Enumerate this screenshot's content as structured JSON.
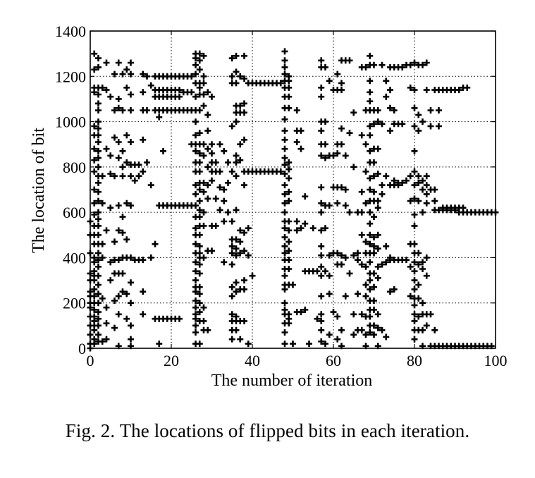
{
  "figure": {
    "caption": "Fig. 2.  The locations of flipped bits in each iteration."
  },
  "chart_data": {
    "type": "scatter",
    "marker": "+",
    "marker_color": "#000000",
    "title": "",
    "xlabel": "The number of iteration",
    "ylabel": "The location of bit",
    "xlim": [
      0,
      100
    ],
    "ylim": [
      0,
      1400
    ],
    "xticks": [
      0,
      20,
      40,
      60,
      80,
      100
    ],
    "yticks": [
      0,
      200,
      400,
      600,
      800,
      1000,
      1200,
      1400
    ],
    "grid": "dotted",
    "clusters": [
      {
        "x": 0,
        "y": [
          560,
          500,
          420,
          330,
          300,
          250,
          230,
          200,
          180,
          140,
          100,
          60,
          20,
          0
        ]
      },
      {
        "x": 1,
        "y": [
          1300,
          1230,
          1150,
          1130,
          980,
          940,
          880,
          830,
          780,
          700,
          640,
          590,
          540,
          500,
          460,
          400,
          380,
          340,
          320,
          300,
          260,
          230,
          200,
          170,
          140,
          120,
          100,
          80,
          40,
          20
        ]
      },
      {
        "x": 2,
        "y": [
          1280,
          1240,
          1150,
          1120,
          1080,
          1050,
          1000,
          970,
          940,
          910,
          870,
          840,
          800,
          760,
          730,
          690,
          650,
          600,
          570,
          540,
          500,
          460,
          420,
          390,
          360,
          320,
          280,
          240,
          200,
          160,
          130,
          100,
          60,
          30
        ]
      },
      {
        "x": 3,
        "y": [
          1150,
          760,
          640,
          460,
          400,
          220,
          30
        ]
      },
      {
        "x": 4,
        "y": [
          1260,
          1140,
          880,
          520,
          180,
          110,
          40
        ]
      },
      {
        "x": 5,
        "y": [
          1110,
          850,
          770,
          620,
          380,
          300
        ]
      },
      {
        "x": 6,
        "y": [
          1210,
          1050,
          930,
          760,
          470,
          390,
          330,
          210,
          90
        ]
      },
      {
        "x": 7,
        "y": [
          1260,
          1100,
          1060,
          910,
          840,
          630,
          520,
          390,
          330,
          230,
          150,
          10
        ]
      },
      {
        "x": 8,
        "y": [
          1210,
          1050,
          870,
          800,
          760,
          580,
          510,
          400,
          330,
          250
        ]
      },
      {
        "x": 9,
        "y": [
          1230,
          1150,
          940,
          820,
          640,
          480,
          400,
          240,
          130
        ]
      },
      {
        "x": 10,
        "y": [
          1260,
          1210,
          1120,
          1050,
          910,
          810,
          760,
          630,
          400,
          290,
          200,
          100,
          40,
          10
        ]
      },
      {
        "x": 11,
        "y": [
          810,
          740,
          390
        ]
      },
      {
        "x": 12,
        "y": [
          810,
          760,
          390
        ]
      },
      {
        "x": 13,
        "y": [
          1210,
          1130,
          1050,
          920,
          780,
          390,
          250,
          150
        ]
      },
      {
        "x": 14,
        "y": [
          1200,
          1050,
          820
        ]
      },
      {
        "x": 15,
        "y": [
          1160,
          720,
          400
        ]
      },
      {
        "x": 16,
        "y": [
          1200,
          1140,
          1110,
          1050,
          460,
          130
        ]
      },
      {
        "x": 17,
        "y": [
          1200,
          1140,
          1110,
          1050,
          1020,
          630,
          130,
          20
        ]
      },
      {
        "x": 18,
        "y": [
          1200,
          1140,
          1110,
          1050,
          870,
          630,
          130
        ]
      },
      {
        "x": 19,
        "y": [
          1200,
          1140,
          1110,
          1050,
          630,
          130
        ]
      },
      {
        "x": 20,
        "y": [
          1200,
          1140,
          1110,
          1050,
          630,
          130
        ]
      },
      {
        "x": 21,
        "y": [
          1200,
          1140,
          1110,
          1050,
          630,
          130
        ]
      },
      {
        "x": 22,
        "y": [
          1200,
          1140,
          1110,
          1050,
          630,
          130
        ]
      },
      {
        "x": 23,
        "y": [
          1200,
          1130,
          1050,
          630
        ]
      },
      {
        "x": 24,
        "y": [
          1200,
          1130,
          1050,
          630
        ]
      },
      {
        "x": 25,
        "y": [
          1200,
          1130,
          1050,
          900,
          630
        ]
      },
      {
        "x": 26,
        "y": [
          1300,
          1280,
          1250,
          1210,
          1170,
          1110,
          1050,
          1000,
          940,
          900,
          870,
          820,
          780,
          720,
          680,
          630,
          580,
          530,
          500,
          460,
          420,
          380,
          340,
          300,
          270,
          250,
          210,
          180,
          150,
          130,
          100,
          70,
          20
        ]
      },
      {
        "x": 27,
        "y": [
          1300,
          1270,
          1230,
          1170,
          1150,
          1120,
          1050,
          950,
          900,
          860,
          820,
          780,
          730,
          700,
          650,
          610,
          580,
          540,
          500,
          450,
          420,
          400,
          370,
          330,
          270,
          240,
          200,
          160,
          120,
          20
        ]
      },
      {
        "x": 28,
        "y": [
          1290,
          1200,
          1170,
          1120,
          1070,
          900,
          850,
          730,
          690,
          600,
          540,
          400,
          180,
          120,
          80
        ]
      },
      {
        "x": 29,
        "y": [
          1130,
          1030,
          960,
          880,
          800,
          720,
          660,
          430,
          80
        ]
      },
      {
        "x": 30,
        "y": [
          1110,
          900,
          860,
          820,
          780,
          740,
          540,
          430
        ]
      },
      {
        "x": 31,
        "y": [
          820,
          780,
          660,
          540
        ]
      },
      {
        "x": 32,
        "y": [
          900,
          780,
          710,
          610
        ]
      },
      {
        "x": 33,
        "y": [
          870,
          700,
          650,
          560,
          380
        ]
      },
      {
        "x": 34,
        "y": [
          820,
          730,
          600
        ]
      },
      {
        "x": 35,
        "y": [
          1280,
          1200,
          1170,
          980,
          780,
          560,
          480,
          450,
          420,
          370,
          270,
          230,
          150,
          120,
          80,
          40
        ]
      },
      {
        "x": 36,
        "y": [
          1290,
          1220,
          1170,
          1070,
          1040,
          1000,
          850,
          820,
          760,
          610,
          480,
          440,
          410,
          290,
          250,
          140,
          120,
          80
        ]
      },
      {
        "x": 37,
        "y": [
          1200,
          1070,
          1040,
          900,
          830,
          520,
          470,
          420,
          260,
          120,
          40
        ]
      },
      {
        "x": 38,
        "y": [
          1290,
          1190,
          1080,
          1040,
          920,
          780,
          720,
          510,
          430,
          300,
          260,
          120
        ]
      },
      {
        "x": 39,
        "y": [
          1170,
          780,
          530,
          410,
          20
        ]
      },
      {
        "x": 40,
        "y": [
          1170,
          780,
          320
        ]
      },
      {
        "x": 41,
        "y": [
          1170,
          780
        ]
      },
      {
        "x": 42,
        "y": [
          1170,
          780
        ]
      },
      {
        "x": 43,
        "y": [
          1170,
          780
        ]
      },
      {
        "x": 44,
        "y": [
          1170,
          780
        ]
      },
      {
        "x": 45,
        "y": [
          1170,
          780
        ]
      },
      {
        "x": 46,
        "y": [
          1170,
          780
        ]
      },
      {
        "x": 47,
        "y": [
          1170,
          780
        ]
      },
      {
        "x": 48,
        "y": [
          1310,
          1270,
          1240,
          1210,
          1180,
          1150,
          1110,
          1060,
          1010,
          960,
          920,
          880,
          840,
          810,
          770,
          720,
          680,
          640,
          600,
          560,
          530,
          490,
          450,
          420,
          390,
          350,
          320,
          280,
          260,
          200,
          170,
          150,
          110,
          70,
          20
        ]
      },
      {
        "x": 49,
        "y": [
          1200,
          1180,
          1150,
          1110,
          1060,
          820,
          790,
          750,
          690,
          650,
          560,
          520,
          470,
          430,
          390,
          350,
          280,
          150,
          130,
          110
        ]
      },
      {
        "x": 50,
        "y": [
          280,
          20
        ]
      },
      {
        "x": 51,
        "y": [
          1050,
          960,
          910,
          560,
          520,
          160
        ]
      },
      {
        "x": 52,
        "y": [
          960,
          880,
          530,
          160
        ]
      },
      {
        "x": 53,
        "y": [
          670,
          550,
          340,
          170
        ]
      },
      {
        "x": 54,
        "y": [
          340,
          20
        ]
      },
      {
        "x": 55,
        "y": [
          530,
          340
        ]
      },
      {
        "x": 56,
        "y": [
          340,
          130
        ]
      },
      {
        "x": 57,
        "y": [
          1270,
          1240,
          1150,
          1110,
          1000,
          960,
          900,
          850,
          710,
          640,
          600,
          520,
          450,
          410,
          360,
          320,
          230,
          150,
          120,
          80,
          30
        ]
      },
      {
        "x": 58,
        "y": [
          1240,
          1000,
          900,
          840,
          630,
          530,
          340,
          20
        ]
      },
      {
        "x": 59,
        "y": [
          1180,
          850,
          630,
          410,
          320,
          240,
          60
        ]
      },
      {
        "x": 60,
        "y": [
          1140,
          850,
          710,
          420,
          160
        ]
      },
      {
        "x": 61,
        "y": [
          1210,
          1140,
          900,
          860,
          710,
          640,
          420,
          370,
          140,
          40
        ]
      },
      {
        "x": 62,
        "y": [
          1270,
          1170,
          1140,
          970,
          900,
          710,
          410,
          370,
          80,
          10
        ]
      },
      {
        "x": 63,
        "y": [
          1270,
          850,
          700,
          630,
          400,
          230
        ]
      },
      {
        "x": 64,
        "y": [
          1270,
          950,
          600,
          330
        ]
      },
      {
        "x": 65,
        "y": [
          1040,
          800,
          410,
          150,
          60
        ]
      },
      {
        "x": 66,
        "y": [
          600,
          420,
          390,
          240,
          80
        ]
      },
      {
        "x": 67,
        "y": [
          1240,
          940,
          690,
          600,
          500,
          370,
          150,
          80
        ]
      },
      {
        "x": 68,
        "y": [
          1240,
          1050,
          900,
          780,
          640,
          470,
          420,
          360,
          280,
          230,
          140,
          60,
          10
        ]
      },
      {
        "x": 69,
        "y": [
          1290,
          1250,
          1180,
          1130,
          1090,
          1050,
          980,
          940,
          870,
          820,
          750,
          700,
          650,
          600,
          550,
          500,
          460,
          420,
          380,
          330,
          300,
          260,
          210,
          170,
          140,
          100,
          70
        ]
      },
      {
        "x": 70,
        "y": [
          1250,
          1050,
          990,
          880,
          820,
          760,
          690,
          650,
          580,
          490,
          450,
          420,
          330,
          270,
          210,
          170,
          100,
          60
        ]
      },
      {
        "x": 71,
        "y": [
          1050,
          1000,
          880,
          770,
          650,
          620,
          500,
          440,
          360,
          310,
          150,
          90,
          10
        ]
      },
      {
        "x": 72,
        "y": [
          1250,
          990,
          720,
          680,
          370,
          80
        ]
      },
      {
        "x": 73,
        "y": [
          1180,
          1110,
          760,
          450,
          380,
          50
        ]
      },
      {
        "x": 74,
        "y": [
          1240,
          1140,
          1060,
          960,
          720,
          400,
          390,
          250
        ]
      },
      {
        "x": 75,
        "y": [
          1240,
          1050,
          990,
          740,
          720,
          390,
          260
        ]
      },
      {
        "x": 76,
        "y": [
          1240,
          990,
          730,
          720,
          390
        ]
      },
      {
        "x": 77,
        "y": [
          1240,
          990,
          730,
          390
        ]
      },
      {
        "x": 78,
        "y": [
          1250,
          740,
          390
        ]
      },
      {
        "x": 79,
        "y": [
          1250,
          1150,
          760,
          650,
          460,
          360,
          230
        ]
      },
      {
        "x": 80,
        "y": [
          1260,
          1140,
          1060,
          980,
          870,
          780,
          720,
          660,
          590,
          540,
          460,
          420,
          380,
          340,
          300,
          260,
          220,
          190,
          150,
          120,
          80,
          40
        ]
      },
      {
        "x": 81,
        "y": [
          1250,
          1030,
          960,
          760,
          730,
          650,
          420,
          370,
          280,
          220,
          140,
          80
        ]
      },
      {
        "x": 82,
        "y": [
          1250,
          1000,
          740,
          700,
          600,
          380,
          350,
          200,
          150,
          80,
          10
        ]
      },
      {
        "x": 83,
        "y": [
          1260,
          1140,
          760,
          720,
          680,
          640,
          400,
          320,
          150,
          100
        ]
      },
      {
        "x": 84,
        "y": [
          1050,
          980,
          700,
          150,
          10
        ]
      },
      {
        "x": 85,
        "y": [
          1140,
          700,
          650,
          610,
          80,
          10
        ]
      },
      {
        "x": 86,
        "y": [
          1140,
          1050,
          980,
          610,
          10
        ]
      },
      {
        "x": 87,
        "y": [
          1140,
          620,
          610,
          10
        ]
      },
      {
        "x": 88,
        "y": [
          1140,
          620,
          610,
          10
        ]
      },
      {
        "x": 89,
        "y": [
          1140,
          620,
          610,
          10
        ]
      },
      {
        "x": 90,
        "y": [
          1140,
          620,
          610,
          10
        ]
      },
      {
        "x": 91,
        "y": [
          1140,
          620,
          600,
          10
        ]
      },
      {
        "x": 92,
        "y": [
          1150,
          620,
          600,
          10
        ]
      },
      {
        "x": 93,
        "y": [
          1150,
          600,
          10
        ]
      },
      {
        "x": 94,
        "y": [
          600,
          10
        ]
      },
      {
        "x": 95,
        "y": [
          600,
          10
        ]
      },
      {
        "x": 96,
        "y": [
          600,
          10
        ]
      },
      {
        "x": 97,
        "y": [
          600,
          10
        ]
      },
      {
        "x": 98,
        "y": [
          600,
          10
        ]
      },
      {
        "x": 99,
        "y": [
          600,
          10
        ]
      },
      {
        "x": 100,
        "y": [
          600
        ]
      }
    ]
  }
}
